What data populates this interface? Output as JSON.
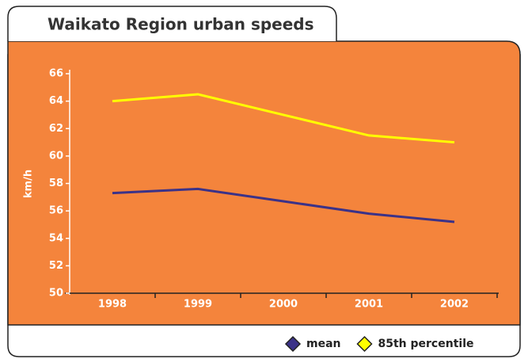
{
  "chart_data": {
    "type": "line",
    "title": "Waikato Region urban speeds",
    "ylabel": "km/h",
    "categories": [
      "1998",
      "1999",
      "2000",
      "2001",
      "2002"
    ],
    "series": [
      {
        "name": "mean",
        "color": "#3b3288",
        "values": [
          57.3,
          57.6,
          56.7,
          55.8,
          55.2
        ]
      },
      {
        "name": "85th percentile",
        "color": "#ffff00",
        "values": [
          64,
          64.5,
          63,
          61.5,
          61
        ]
      }
    ],
    "ylim": [
      50,
      66
    ],
    "yticks": [
      50,
      52,
      54,
      56,
      58,
      60,
      62,
      64,
      66
    ],
    "grid": false,
    "legend": "bottom-right"
  }
}
